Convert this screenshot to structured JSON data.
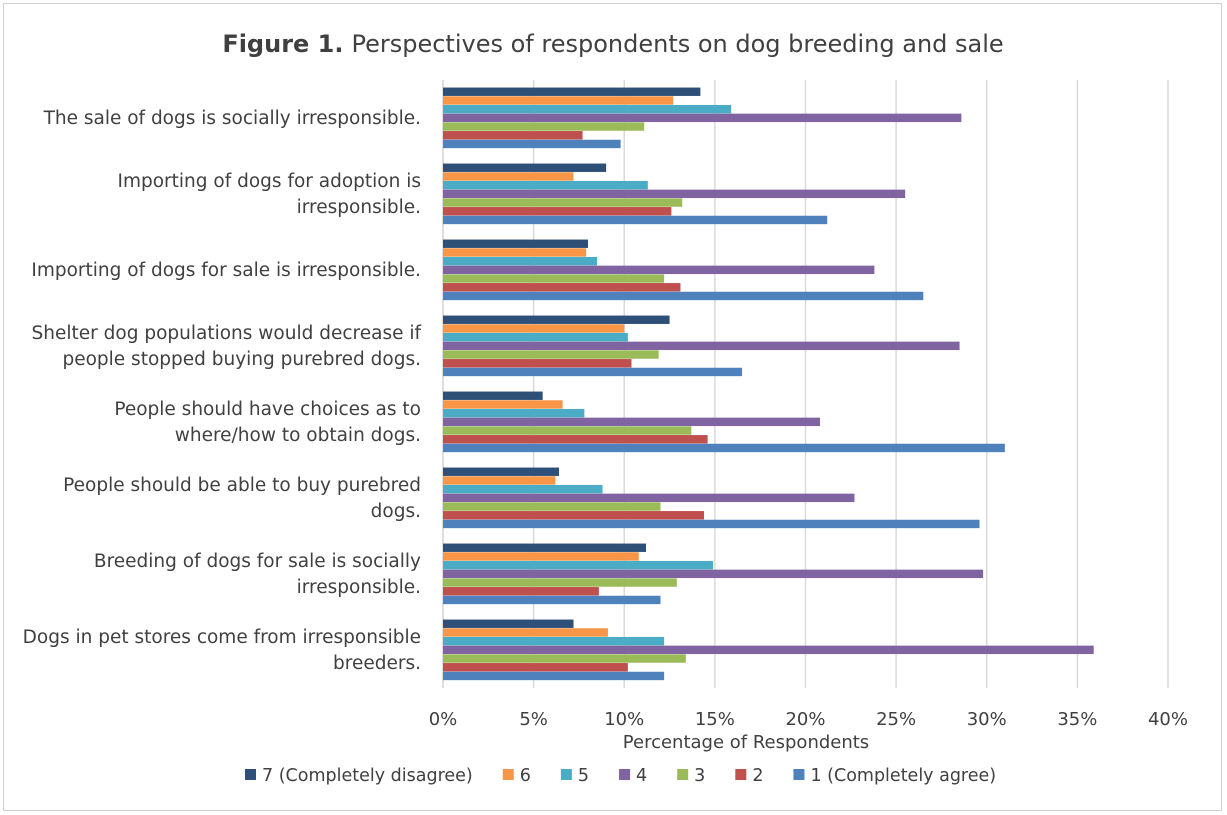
{
  "chart_data": {
    "type": "bar",
    "orientation": "horizontal",
    "title_bold": "Figure 1.",
    "title": "Perspectives of respondents on dog breeding and sale",
    "xlabel": "Percentage of Respondents",
    "ylabel": "",
    "xlim": [
      0,
      40
    ],
    "x_ticks": [
      "0%",
      "5%",
      "10%",
      "15%",
      "20%",
      "25%",
      "30%",
      "35%",
      "40%"
    ],
    "grid": "vertical",
    "legend_position": "bottom",
    "categories": [
      [
        "The sale of dogs is socially irresponsible."
      ],
      [
        "Importing of dogs for adoption is",
        "irresponsible."
      ],
      [
        "Importing of dogs for sale is irresponsible."
      ],
      [
        "Shelter dog populations would decrease if",
        "people stopped buying purebred dogs."
      ],
      [
        "People should have choices as to",
        "where/how to obtain dogs."
      ],
      [
        "People should be able to buy purebred",
        "dogs."
      ],
      [
        "Breeding of dogs for sale is socially",
        "irresponsible."
      ],
      [
        "Dogs in pet stores come from irresponsible",
        "breeders."
      ]
    ],
    "series": [
      {
        "name": "7 (Completely disagree)",
        "color": "#2e4f78",
        "values": [
          14.2,
          9.0,
          8.0,
          12.5,
          5.5,
          6.4,
          11.2,
          7.2
        ]
      },
      {
        "name": "6",
        "color": "#f79646",
        "values": [
          12.7,
          7.2,
          7.9,
          10.0,
          6.6,
          6.2,
          10.8,
          9.1
        ]
      },
      {
        "name": "5",
        "color": "#4bacc6",
        "values": [
          15.9,
          11.3,
          8.5,
          10.2,
          7.8,
          8.8,
          14.9,
          12.2
        ]
      },
      {
        "name": "4",
        "color": "#8064a2",
        "values": [
          28.6,
          25.5,
          23.8,
          28.5,
          20.8,
          22.7,
          29.8,
          35.9
        ]
      },
      {
        "name": "3",
        "color": "#9bbb59",
        "values": [
          11.1,
          13.2,
          12.2,
          11.9,
          13.7,
          12.0,
          12.9,
          13.4
        ]
      },
      {
        "name": "2",
        "color": "#c0504d",
        "values": [
          7.7,
          12.6,
          13.1,
          10.4,
          14.6,
          14.4,
          8.6,
          10.2
        ]
      },
      {
        "name": "1 (Completely agree)",
        "color": "#4f81bd",
        "values": [
          9.8,
          21.2,
          26.5,
          16.5,
          31.0,
          29.6,
          12.0,
          12.2
        ]
      }
    ]
  }
}
